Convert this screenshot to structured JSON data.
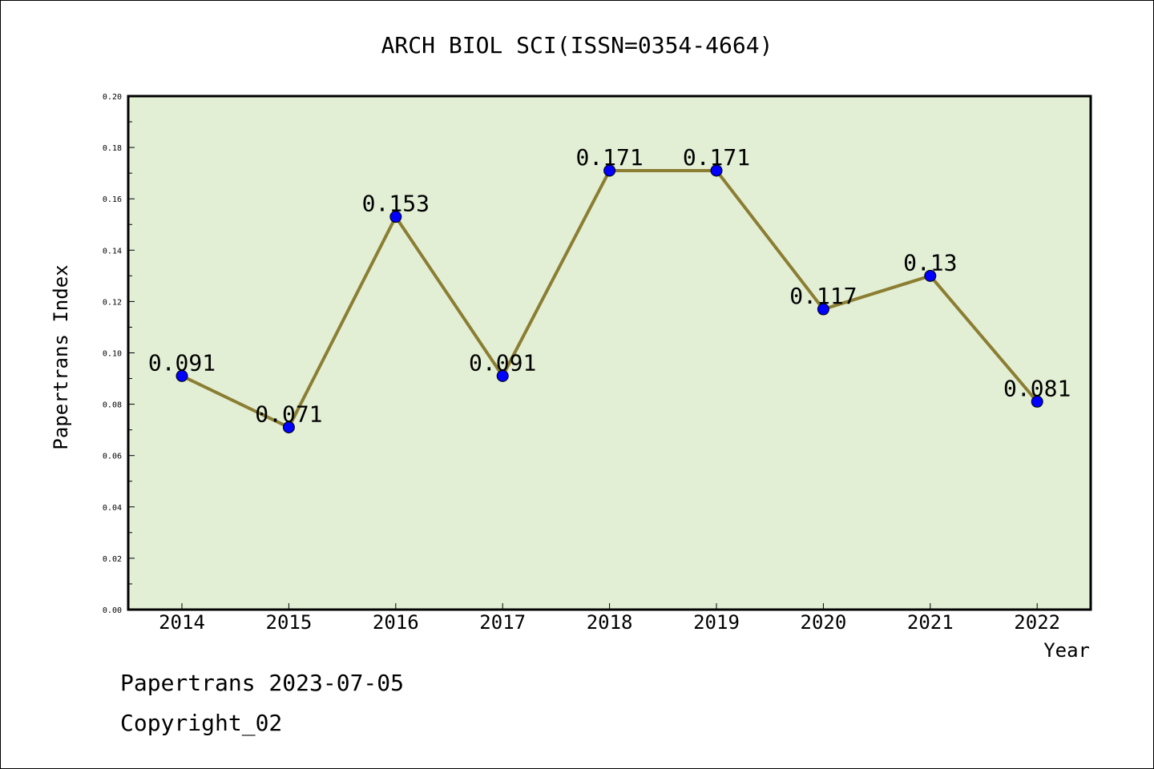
{
  "chart_data": {
    "type": "line",
    "title": "ARCH BIOL SCI(ISSN=0354-4664)",
    "xlabel": "Year",
    "ylabel": "Papertrans Index",
    "ylim": [
      0,
      0.2
    ],
    "y_ticks": [
      "0.00",
      "0.02",
      "0.04",
      "0.06",
      "0.08",
      "0.10",
      "0.12",
      "0.14",
      "0.16",
      "0.18",
      "0.20"
    ],
    "categories": [
      "2014",
      "2015",
      "2016",
      "2017",
      "2018",
      "2019",
      "2020",
      "2021",
      "2022"
    ],
    "series": [
      {
        "values": [
          0.091,
          0.071,
          0.153,
          0.091,
          0.171,
          0.171,
          0.117,
          0.13,
          0.081
        ],
        "labels": [
          "0.091",
          "0.071",
          "0.153",
          "0.091",
          "0.171",
          "0.171",
          "0.117",
          "0.13",
          "0.081"
        ]
      }
    ],
    "colors": {
      "plot_background": "#e2efd5",
      "line": "#8b7d32",
      "marker": "#0000ff"
    },
    "grid": false,
    "legend": "none"
  },
  "footer": {
    "line1": "Papertrans 2023-07-05",
    "line2": "Copyright_02"
  }
}
